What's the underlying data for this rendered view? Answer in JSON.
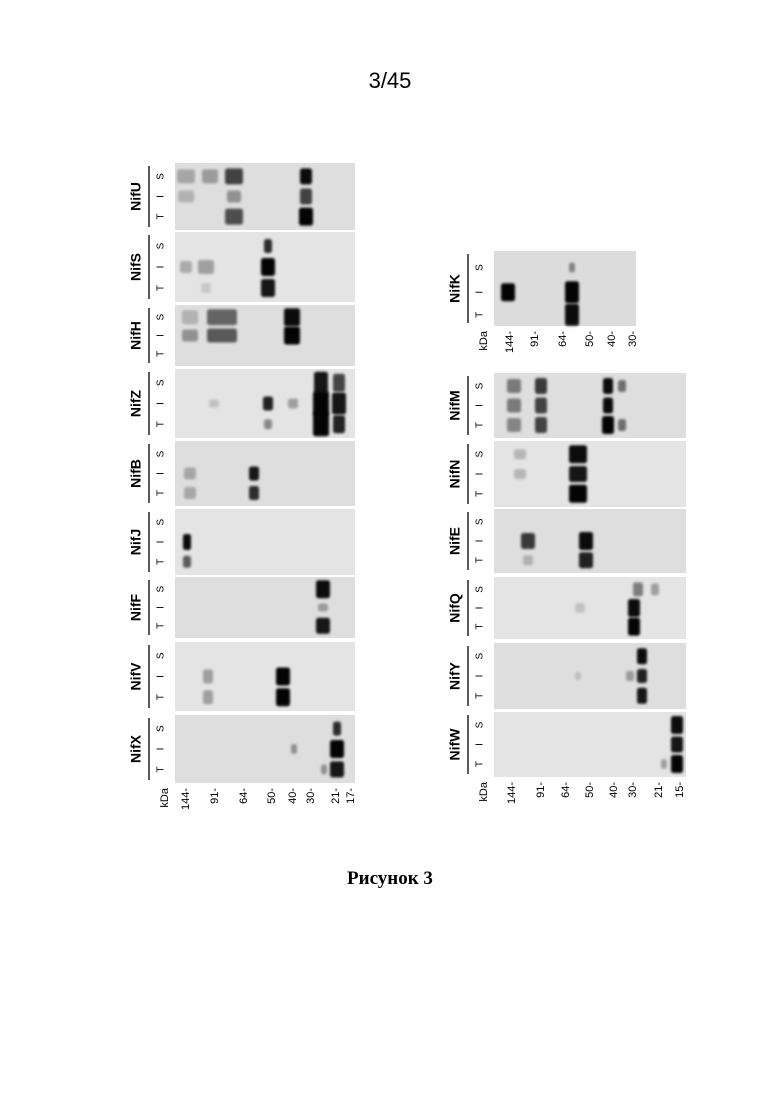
{
  "page_number": "3/45",
  "caption": "Рисунок 3",
  "kda_label": "kDa",
  "left_marker_labels": [
    "144-",
    "91-",
    "64-",
    "50-",
    "40-",
    "30-",
    "21-",
    "17-"
  ],
  "right_marker_labels": [
    "144-",
    "91-",
    "64-",
    "50-",
    "40-",
    "30-",
    "21-",
    "15-"
  ],
  "nifk_marker_labels": [
    "144-",
    "91-",
    "64-",
    "50-",
    "40-",
    "30-"
  ],
  "lane_labels": [
    "S",
    "I",
    "T"
  ],
  "left_panels": [
    "NifU",
    "NifS",
    "NifH",
    "NifZ",
    "NifB",
    "NifJ",
    "NifF",
    "NifV",
    "NifX"
  ],
  "right_panels": [
    "NifM",
    "NifN",
    "NifE",
    "NifQ",
    "NifY",
    "NifW"
  ],
  "nifk_panel": "NifK"
}
